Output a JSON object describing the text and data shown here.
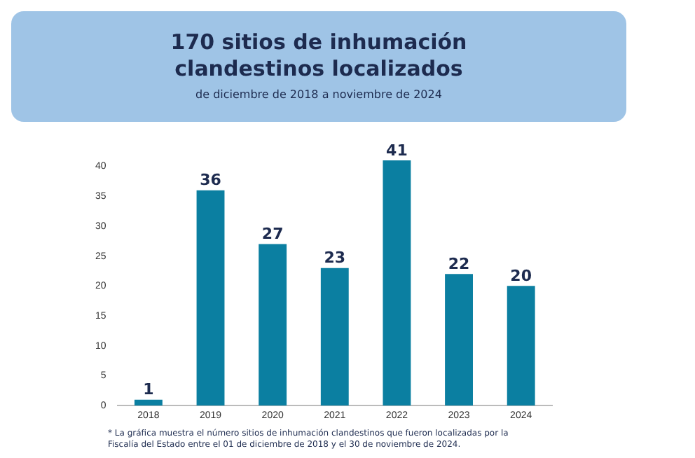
{
  "chart_data": {
    "type": "bar",
    "title": "170 sitios de inhumación clandestinos localizados",
    "subtitle": "de diciembre de 2018 a noviembre de 2024",
    "categories": [
      "2018",
      "2019",
      "2020",
      "2021",
      "2022",
      "2023",
      "2024"
    ],
    "values": [
      1,
      36,
      27,
      23,
      41,
      22,
      20
    ],
    "color": "#0b7fa1",
    "ylim": [
      0,
      42
    ],
    "yticks": [
      0,
      5,
      10,
      15,
      20,
      25,
      30,
      35,
      40
    ],
    "grid": false,
    "legend": false,
    "data_labels": true,
    "annotations": [
      "* La gráfica muestra el número sitios de inhumación clandestinos que fueron localizadas por la Fiscalía del Estado entre el 01 de diciembre de 2018 y el 30 de noviembre de 2024."
    ]
  }
}
